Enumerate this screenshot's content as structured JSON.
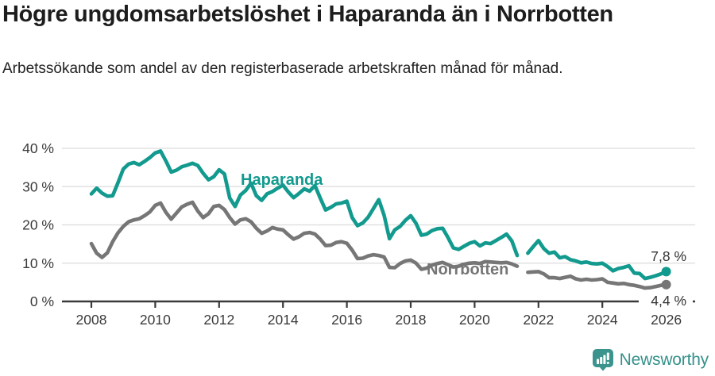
{
  "header": {
    "title": "Högre ungdomsarbetslöshet i Haparanda än i Norrbotten",
    "subtitle": "Arbetssökande som andel av den registerbaserade arbetskraften månad för månad."
  },
  "chart_data": {
    "type": "line",
    "title": "Högre ungdomsarbetslöshet i Haparanda än i Norrbotten",
    "ylabel": "",
    "xlabel": "",
    "ylim": [
      0,
      40
    ],
    "grid": "horizontal",
    "legend_position": "inline-labels",
    "x_start": 2008,
    "x_step_months": 2,
    "note": "monthly share in percent, Jan 2008 - Jan 2026, null = gap mid-2021",
    "yticks": [
      {
        "value": 0,
        "label": "0 %"
      },
      {
        "value": 10,
        "label": "10 %"
      },
      {
        "value": 20,
        "label": "20 %"
      },
      {
        "value": 30,
        "label": "30 %"
      },
      {
        "value": 40,
        "label": "40 %"
      }
    ],
    "xticks": [
      {
        "value": 2008,
        "label": "2008"
      },
      {
        "value": 2010,
        "label": "2010"
      },
      {
        "value": 2012,
        "label": "2012"
      },
      {
        "value": 2014,
        "label": "2014"
      },
      {
        "value": 2016,
        "label": "2016"
      },
      {
        "value": 2018,
        "label": "2018"
      },
      {
        "value": 2020,
        "label": "2020"
      },
      {
        "value": 2022,
        "label": "2022"
      },
      {
        "value": 2024,
        "label": "2024"
      },
      {
        "value": 2026,
        "label": "2026"
      }
    ],
    "series": [
      {
        "name": "Norrbotten",
        "color": "#767676",
        "end_label": "4,4 %",
        "end_value": 4.4,
        "values": [
          15.1,
          12.6,
          11.5,
          12.7,
          15.6,
          17.9,
          19.6,
          20.8,
          21.3,
          21.6,
          22.4,
          23.4,
          25.1,
          25.7,
          23.3,
          21.5,
          23.1,
          24.7,
          25.4,
          25.9,
          23.6,
          21.9,
          22.9,
          24.8,
          25.1,
          24.0,
          21.9,
          20.2,
          21.3,
          21.6,
          20.8,
          19.1,
          17.8,
          18.4,
          19.3,
          18.9,
          18.7,
          17.4,
          16.3,
          16.9,
          17.8,
          18.0,
          17.6,
          16.3,
          14.6,
          14.7,
          15.4,
          15.6,
          15.2,
          13.4,
          11.2,
          11.3,
          11.9,
          12.2,
          12.0,
          11.6,
          8.9,
          8.8,
          9.9,
          10.6,
          10.8,
          10.0,
          8.4,
          8.7,
          9.5,
          9.9,
          10.2,
          9.6,
          9.0,
          9.2,
          9.7,
          10.0,
          10.1,
          9.9,
          10.4,
          10.3,
          10.2,
          10.1,
          10.2,
          9.8,
          9.2,
          null,
          7.6,
          7.7,
          7.8,
          7.2,
          6.2,
          6.2,
          6.0,
          6.3,
          6.6,
          5.9,
          5.6,
          5.8,
          5.6,
          5.7,
          5.9,
          5.0,
          4.8,
          4.6,
          4.7,
          4.4,
          4.2,
          3.9,
          3.5,
          3.6,
          3.9,
          4.2,
          4.4
        ]
      },
      {
        "name": "Haparanda",
        "color": "#129a8e",
        "end_label": "7,8 %",
        "end_value": 7.8,
        "values": [
          28.1,
          29.6,
          28.3,
          27.5,
          27.6,
          31.0,
          34.6,
          35.9,
          36.3,
          35.7,
          36.6,
          37.6,
          38.8,
          39.3,
          36.7,
          33.8,
          34.3,
          35.2,
          35.6,
          36.1,
          35.5,
          33.5,
          31.8,
          32.6,
          34.4,
          33.3,
          27.0,
          24.8,
          27.8,
          29.0,
          30.9,
          27.6,
          26.4,
          28.1,
          28.7,
          29.6,
          30.4,
          28.6,
          27.1,
          28.2,
          29.4,
          28.8,
          30.3,
          27.0,
          23.9,
          24.6,
          25.5,
          25.7,
          26.2,
          21.9,
          19.8,
          20.5,
          22.0,
          24.3,
          26.6,
          22.5,
          16.4,
          18.7,
          19.6,
          21.2,
          22.4,
          20.4,
          17.3,
          17.6,
          18.5,
          19.0,
          19.1,
          16.7,
          14.0,
          13.6,
          14.4,
          15.2,
          15.6,
          14.5,
          15.3,
          15.1,
          15.9,
          16.7,
          17.6,
          15.8,
          12.0,
          null,
          12.6,
          14.3,
          15.9,
          13.8,
          12.6,
          12.9,
          11.4,
          11.7,
          10.9,
          10.6,
          10.1,
          10.3,
          9.9,
          9.8,
          10.0,
          9.1,
          8.0,
          8.6,
          8.9,
          9.3,
          7.4,
          7.3,
          6.0,
          6.3,
          6.7,
          7.2,
          7.8
        ]
      }
    ]
  },
  "footer": {
    "brand": "Newsworthy",
    "logo_icon": "newsworthy-bubble-chart-icon"
  }
}
